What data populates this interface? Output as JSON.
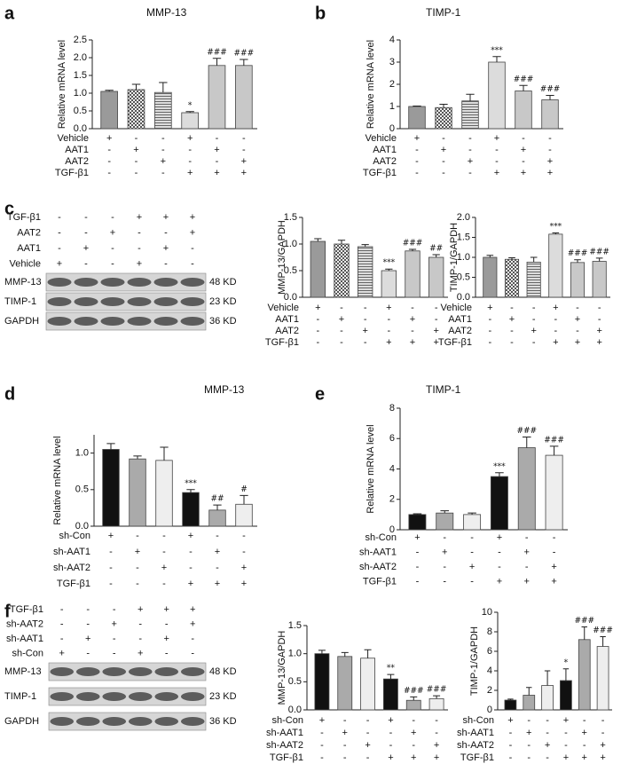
{
  "chart_data": [
    {
      "type": "bar",
      "panel": "a",
      "title": "MMP-13",
      "y_label": "Relative mRNA level",
      "values": [
        1.05,
        1.1,
        1.02,
        0.45,
        1.78,
        1.78
      ],
      "errors": [
        0.03,
        0.15,
        0.28,
        0.03,
        0.2,
        0.17
      ],
      "annotations": [
        null,
        null,
        null,
        "*",
        "###",
        "###"
      ],
      "colors": [
        "#9a9a9a",
        "#8a8a8a",
        "#9a9a9a",
        "#dcdcdc",
        "#c8c8c8",
        "#c8c8c8"
      ],
      "patterns": [
        "solid",
        "checker",
        "hlines",
        "solid",
        "solid",
        "solid"
      ],
      "ylim": [
        0,
        2.5
      ],
      "yticks": [
        {
          "value": 0,
          "label": "0.0"
        },
        0.5,
        {
          "value": 1,
          "label": "1.0"
        },
        1.5,
        {
          "value": 2,
          "label": "2.0"
        },
        2.5
      ],
      "conditions": [
        {
          "name": "Vehicle",
          "signs": [
            "+",
            "-",
            "-",
            "+",
            "-",
            "-"
          ]
        },
        {
          "name": "AAT1",
          "signs": [
            "-",
            "+",
            "-",
            "-",
            "+",
            "-"
          ]
        },
        {
          "name": "AAT2",
          "signs": [
            "-",
            "-",
            "+",
            "-",
            "-",
            "+"
          ]
        },
        {
          "name": "TGF-β1",
          "signs": [
            "-",
            "-",
            "-",
            "+",
            "+",
            "+"
          ]
        }
      ]
    },
    {
      "type": "bar",
      "panel": "b",
      "title": "TIMP-1",
      "y_label": "Relative mRNA level",
      "values": [
        1.0,
        0.95,
        1.25,
        3.0,
        1.7,
        1.3
      ],
      "errors": [
        0.02,
        0.15,
        0.3,
        0.25,
        0.25,
        0.2
      ],
      "annotations": [
        null,
        null,
        null,
        "***",
        "###",
        "###"
      ],
      "colors": [
        "#9a9a9a",
        "#8a8a8a",
        "#9a9a9a",
        "#dcdcdc",
        "#c8c8c8",
        "#c8c8c8"
      ],
      "patterns": [
        "solid",
        "checker",
        "hlines",
        "solid",
        "solid",
        "solid"
      ],
      "ylim": [
        0,
        4
      ],
      "yticks": [
        0,
        1,
        2,
        3,
        4
      ],
      "conditions": [
        {
          "name": "Vehicle",
          "signs": [
            "+",
            "-",
            "-",
            "+",
            "-",
            "-"
          ]
        },
        {
          "name": "AAT1",
          "signs": [
            "-",
            "+",
            "-",
            "-",
            "+",
            "-"
          ]
        },
        {
          "name": "AAT2",
          "signs": [
            "-",
            "-",
            "+",
            "-",
            "-",
            "+"
          ]
        },
        {
          "name": "TGF-β1",
          "signs": [
            "-",
            "-",
            "-",
            "+",
            "+",
            "+"
          ]
        }
      ]
    },
    {
      "type": "bar",
      "y_label": "MMP-13/GAPDH",
      "values": [
        1.05,
        1.0,
        0.95,
        0.5,
        0.87,
        0.75
      ],
      "errors": [
        0.05,
        0.07,
        0.04,
        0.03,
        0.03,
        0.05
      ],
      "annotations": [
        null,
        null,
        null,
        "***",
        "###",
        "##"
      ],
      "colors": [
        "#9a9a9a",
        "#8a8a8a",
        "#9a9a9a",
        "#dcdcdc",
        "#c8c8c8",
        "#c8c8c8"
      ],
      "patterns": [
        "solid",
        "checker",
        "hlines",
        "solid",
        "solid",
        "solid"
      ],
      "ylim": [
        0,
        1.5
      ],
      "yticks": [
        {
          "value": 0,
          "label": "0.0"
        },
        0.5,
        {
          "value": 1,
          "label": "1.0"
        },
        1.5
      ],
      "conditions": [
        {
          "name": "Vehicle",
          "signs": [
            "+",
            "-",
            "-",
            "+",
            "-",
            "-"
          ]
        },
        {
          "name": "AAT1",
          "signs": [
            "-",
            "+",
            "-",
            "-",
            "+",
            "-"
          ]
        },
        {
          "name": "AAT2",
          "signs": [
            "-",
            "-",
            "+",
            "-",
            "-",
            "+"
          ]
        },
        {
          "name": "TGF-β1",
          "signs": [
            "-",
            "-",
            "-",
            "+",
            "+",
            "+"
          ]
        }
      ]
    },
    {
      "type": "bar",
      "y_label": "TIMP-1/GAPDH",
      "values": [
        1.0,
        0.95,
        0.88,
        1.58,
        0.87,
        0.9
      ],
      "errors": [
        0.05,
        0.04,
        0.12,
        0.03,
        0.07,
        0.08
      ],
      "annotations": [
        null,
        null,
        null,
        "***",
        "###",
        "###"
      ],
      "colors": [
        "#9a9a9a",
        "#8a8a8a",
        "#9a9a9a",
        "#dcdcdc",
        "#c8c8c8",
        "#c8c8c8"
      ],
      "patterns": [
        "solid",
        "checker",
        "hlines",
        "solid",
        "solid",
        "solid"
      ],
      "ylim": [
        0,
        2
      ],
      "yticks": [
        {
          "value": 0,
          "label": "0.0"
        },
        0.5,
        {
          "value": 1,
          "label": "1.0"
        },
        1.5,
        {
          "value": 2,
          "label": "2.0"
        }
      ],
      "conditions": [
        {
          "name": "Vehicle",
          "signs": [
            "+",
            "-",
            "-",
            "+",
            "-",
            "-"
          ]
        },
        {
          "name": "AAT1",
          "signs": [
            "-",
            "+",
            "-",
            "-",
            "+",
            "-"
          ]
        },
        {
          "name": "AAT2",
          "signs": [
            "-",
            "-",
            "+",
            "-",
            "-",
            "+"
          ]
        },
        {
          "name": "TGF-β1",
          "signs": [
            "-",
            "-",
            "-",
            "+",
            "+",
            "+"
          ]
        }
      ]
    },
    {
      "type": "bar",
      "panel": "d",
      "title": "MMP-13",
      "y_label": "Relative mRNA level",
      "values": [
        1.05,
        0.92,
        0.9,
        0.46,
        0.22,
        0.3
      ],
      "errors": [
        0.08,
        0.04,
        0.18,
        0.04,
        0.07,
        0.12
      ],
      "annotations": [
        null,
        null,
        null,
        "***",
        "##",
        "#"
      ],
      "colors": [
        "#111111",
        "#aaaaaa",
        "#eeeeee",
        "#111111",
        "#aaaaaa",
        "#eeeeee"
      ],
      "patterns": [
        "solid",
        "solid",
        "solid",
        "solid",
        "solid",
        "solid"
      ],
      "ylim": [
        0,
        1.25
      ],
      "yticks": [
        {
          "value": 0,
          "label": "0.0"
        },
        0.5,
        {
          "value": 1,
          "label": "1.0"
        }
      ],
      "conditions": [
        {
          "name": "sh-Con",
          "signs": [
            "+",
            "-",
            "-",
            "+",
            "-",
            "-"
          ]
        },
        {
          "name": "sh-AAT1",
          "signs": [
            "-",
            "+",
            "-",
            "-",
            "+",
            "-"
          ]
        },
        {
          "name": "sh-AAT2",
          "signs": [
            "-",
            "-",
            "+",
            "-",
            "-",
            "+"
          ]
        },
        {
          "name": "TGF-β1",
          "signs": [
            "-",
            "-",
            "-",
            "+",
            "+",
            "+"
          ]
        }
      ]
    },
    {
      "type": "bar",
      "panel": "e",
      "title": "TIMP-1",
      "y_label": "Relative mRNA level",
      "values": [
        1.0,
        1.1,
        1.0,
        3.5,
        5.4,
        4.9
      ],
      "errors": [
        0.05,
        0.15,
        0.1,
        0.25,
        0.7,
        0.6
      ],
      "annotations": [
        null,
        null,
        null,
        "***",
        "###",
        "###"
      ],
      "colors": [
        "#111111",
        "#aaaaaa",
        "#eeeeee",
        "#111111",
        "#aaaaaa",
        "#eeeeee"
      ],
      "patterns": [
        "solid",
        "solid",
        "solid",
        "solid",
        "solid",
        "solid"
      ],
      "ylim": [
        0,
        8
      ],
      "yticks": [
        0,
        2,
        4,
        6,
        8
      ],
      "conditions": [
        {
          "name": "sh-Con",
          "signs": [
            "+",
            "-",
            "-",
            "+",
            "-",
            "-"
          ]
        },
        {
          "name": "sh-AAT1",
          "signs": [
            "-",
            "+",
            "-",
            "-",
            "+",
            "-"
          ]
        },
        {
          "name": "sh-AAT2",
          "signs": [
            "-",
            "-",
            "+",
            "-",
            "-",
            "+"
          ]
        },
        {
          "name": "TGF-β1",
          "signs": [
            "-",
            "-",
            "-",
            "+",
            "+",
            "+"
          ]
        }
      ]
    },
    {
      "type": "bar",
      "y_label": "MMP-13/GAPDH",
      "values": [
        1.0,
        0.95,
        0.92,
        0.55,
        0.17,
        0.2
      ],
      "errors": [
        0.06,
        0.07,
        0.15,
        0.08,
        0.06,
        0.05
      ],
      "annotations": [
        null,
        null,
        null,
        "**",
        "###",
        "###"
      ],
      "colors": [
        "#111111",
        "#aaaaaa",
        "#eeeeee",
        "#111111",
        "#aaaaaa",
        "#eeeeee"
      ],
      "patterns": [
        "solid",
        "solid",
        "solid",
        "solid",
        "solid",
        "solid"
      ],
      "ylim": [
        0,
        1.5
      ],
      "yticks": [
        {
          "value": 0,
          "label": "0.0"
        },
        0.5,
        {
          "value": 1,
          "label": "1.0"
        },
        1.5
      ],
      "conditions": [
        {
          "name": "sh-Con",
          "signs": [
            "+",
            "-",
            "-",
            "+",
            "-",
            "-"
          ]
        },
        {
          "name": "sh-AAT1",
          "signs": [
            "-",
            "+",
            "-",
            "-",
            "+",
            "-"
          ]
        },
        {
          "name": "sh-AAT2",
          "signs": [
            "-",
            "-",
            "+",
            "-",
            "-",
            "+"
          ]
        },
        {
          "name": "TGF-β1",
          "signs": [
            "-",
            "-",
            "-",
            "+",
            "+",
            "+"
          ]
        }
      ]
    },
    {
      "type": "bar",
      "y_label": "TIMP-1/GAPDH",
      "values": [
        1.0,
        1.5,
        2.5,
        3.0,
        7.2,
        6.5
      ],
      "errors": [
        0.1,
        0.8,
        1.5,
        1.2,
        1.3,
        1.0
      ],
      "annotations": [
        null,
        null,
        null,
        "*",
        "###",
        "###"
      ],
      "colors": [
        "#111111",
        "#aaaaaa",
        "#eeeeee",
        "#111111",
        "#aaaaaa",
        "#eeeeee"
      ],
      "patterns": [
        "solid",
        "solid",
        "solid",
        "solid",
        "solid",
        "solid"
      ],
      "ylim": [
        0,
        10
      ],
      "yticks": [
        0,
        2,
        4,
        6,
        8,
        10
      ],
      "conditions": [
        {
          "name": "sh-Con",
          "signs": [
            "+",
            "-",
            "-",
            "+",
            "-",
            "-"
          ]
        },
        {
          "name": "sh-AAT1",
          "signs": [
            "-",
            "+",
            "-",
            "-",
            "+",
            "-"
          ]
        },
        {
          "name": "sh-AAT2",
          "signs": [
            "-",
            "-",
            "+",
            "-",
            "-",
            "+"
          ]
        },
        {
          "name": "TGF-β1",
          "signs": [
            "-",
            "-",
            "-",
            "+",
            "+",
            "+"
          ]
        }
      ]
    }
  ],
  "blots": [
    {
      "panel": "c",
      "conditions": [
        {
          "name": "TGF-β1",
          "signs": [
            "-",
            "-",
            "-",
            "+",
            "+",
            "+"
          ]
        },
        {
          "name": "AAT2",
          "signs": [
            "-",
            "-",
            "+",
            "-",
            "-",
            "+"
          ]
        },
        {
          "name": "AAT1",
          "signs": [
            "-",
            "+",
            "-",
            "-",
            "+",
            "-"
          ]
        },
        {
          "name": "Vehicle",
          "signs": [
            "+",
            "-",
            "-",
            "+",
            "-",
            "-"
          ]
        }
      ],
      "bands": [
        {
          "name": "MMP-13",
          "size": "48 KD"
        },
        {
          "name": "TIMP-1",
          "size": "23 KD"
        },
        {
          "name": "GAPDH",
          "size": "36 KD"
        }
      ]
    },
    {
      "panel": "f",
      "conditions": [
        {
          "name": "TGF-β1",
          "signs": [
            "-",
            "-",
            "-",
            "+",
            "+",
            "+"
          ]
        },
        {
          "name": "sh-AAT2",
          "signs": [
            "-",
            "-",
            "+",
            "-",
            "-",
            "+"
          ]
        },
        {
          "name": "sh-AAT1",
          "signs": [
            "-",
            "+",
            "-",
            "-",
            "+",
            "-"
          ]
        },
        {
          "name": "sh-Con",
          "signs": [
            "+",
            "-",
            "-",
            "+",
            "-",
            "-"
          ]
        }
      ],
      "bands": [
        {
          "name": "MMP-13",
          "size": "48 KD"
        },
        {
          "name": "TIMP-1",
          "size": "23 KD"
        },
        {
          "name": "GAPDH",
          "size": "36 KD"
        }
      ]
    }
  ]
}
